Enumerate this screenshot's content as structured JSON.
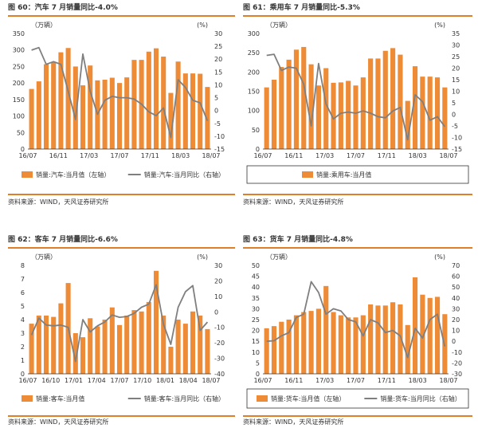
{
  "colors": {
    "bar": "#ee8b36",
    "line": "#7f7f7f",
    "rule": "#e07f2a",
    "axis": "#333333"
  },
  "chart_data": [
    {
      "type": "bar",
      "title": "图 60：汽车 7 月销量同比-4.0%",
      "left_unit": "（万辆）",
      "right_unit": "(%)",
      "source": "资料来源：WIND，天风证券研究所",
      "x_tick_labels": [
        "16/07",
        "16/11",
        "17/03",
        "17/07",
        "17/11",
        "18/03",
        "18/07"
      ],
      "ylim_left": [
        0,
        350
      ],
      "yticks_left": [
        0,
        50,
        100,
        150,
        200,
        250,
        300,
        350
      ],
      "ylim_right": [
        -15,
        30
      ],
      "yticks_right": [
        -15,
        -10,
        -5,
        0,
        5,
        10,
        15,
        20,
        25,
        30
      ],
      "legend": [
        "销量:汽车:当月值（左轴）",
        "销量:汽车:当月同比（右轴）"
      ],
      "series": [
        {
          "name": "销量:汽车:当月值（左轴）",
          "axis": "left",
          "values": [
            182,
            205,
            257,
            263,
            293,
            306,
            250,
            193,
            253,
            208,
            210,
            216,
            200,
            217,
            270,
            270,
            295,
            305,
            280,
            170,
            265,
            229,
            229,
            228,
            188
          ]
        },
        {
          "name": "销量:汽车:当月同比（右轴）",
          "axis": "right",
          "values": [
            23.5,
            24.5,
            18.0,
            19.0,
            18.0,
            7.5,
            -3.5,
            22.0,
            7.5,
            -1.5,
            4.0,
            5.5,
            5.0,
            5.0,
            4.5,
            2.5,
            -0.5,
            -2.0,
            1.0,
            -10.5,
            12.0,
            9.0,
            4.0,
            3.0,
            -4.0
          ]
        }
      ]
    },
    {
      "type": "bar",
      "title": "图 61：乘用车 7 月销量同比-5.3%",
      "left_unit": "（万辆）",
      "right_unit": "(%)",
      "source": "资料来源：WIND，天风证券研究所",
      "x_tick_labels": [
        "16/07",
        "16/11",
        "17/03",
        "17/07",
        "17/11",
        "18/03",
        "18/07"
      ],
      "ylim_left": [
        0,
        300
      ],
      "yticks_left": [
        0,
        50,
        100,
        150,
        200,
        250,
        300
      ],
      "ylim_right": [
        -15,
        35
      ],
      "yticks_right": [
        -15,
        -10,
        -5,
        0,
        5,
        10,
        15,
        20,
        25,
        30,
        35
      ],
      "legend": [
        "销量:乘用车:当月值"
      ],
      "series": [
        {
          "name": "销量:乘用车:当月值",
          "axis": "left",
          "values": [
            160,
            180,
            213,
            232,
            258,
            265,
            220,
            165,
            210,
            172,
            173,
            177,
            165,
            186,
            235,
            235,
            255,
            262,
            245,
            125,
            215,
            188,
            188,
            186,
            160
          ]
        },
        {
          "name": "",
          "axis": "right",
          "values": [
            25.5,
            26.0,
            19.0,
            20.5,
            20.0,
            13.0,
            -5.0,
            22.0,
            4.5,
            -2.0,
            0.5,
            1.0,
            0.5,
            1.5,
            0.5,
            -1.0,
            -1.5,
            1.5,
            3.0,
            -11.0,
            8.5,
            5.5,
            -2.5,
            -1.0,
            -5.3
          ]
        }
      ]
    },
    {
      "type": "bar",
      "title": "图 62：客车 7 月销量同比-6.6%",
      "left_unit": "（万辆）",
      "right_unit": "(%)",
      "source": "资料来源：WIND，天风证券研究所",
      "x_tick_labels": [
        "16/07",
        "16/10",
        "17/01",
        "17/04",
        "17/07",
        "17/10",
        "18/01",
        "18/04",
        "18/07"
      ],
      "ylim_left": [
        0,
        8
      ],
      "yticks_left": [
        0,
        1,
        2,
        3,
        4,
        5,
        6,
        7,
        8
      ],
      "ylim_right": [
        -40,
        30
      ],
      "yticks_right": [
        -40,
        -30,
        -20,
        -10,
        0,
        10,
        20,
        30
      ],
      "legend": [
        "销量:客车:当月值",
        "销量:客车:当月同比（右轴）"
      ],
      "series": [
        {
          "name": "销量:客车:当月值",
          "axis": "left",
          "values": [
            3.7,
            4.3,
            4.3,
            4.2,
            5.2,
            6.7,
            3.0,
            2.7,
            4.1,
            3.5,
            4.0,
            4.9,
            3.6,
            4.3,
            4.7,
            4.6,
            5.3,
            7.6,
            4.3,
            2.0,
            4.0,
            3.7,
            4.6,
            4.3,
            3.3
          ]
        },
        {
          "name": "销量:客车:当月同比（右轴）",
          "axis": "right",
          "values": [
            -15.0,
            -4.0,
            -8.5,
            -9.0,
            -8.5,
            -10.0,
            -32.0,
            -5.0,
            -13.0,
            -9.0,
            -6.5,
            -2.0,
            -3.5,
            -3.0,
            -1.0,
            3.0,
            5.0,
            17.5,
            -8.0,
            -21.0,
            3.0,
            13.0,
            17.0,
            -12.0,
            -6.6
          ]
        }
      ]
    },
    {
      "type": "bar",
      "title": "图 63：货车 7 月销量同比-4.8%",
      "left_unit": "（万辆）",
      "right_unit": "(%)",
      "source": "资料来源：WIND，天风证券研究所",
      "x_tick_labels": [
        "16/07",
        "16/11",
        "17/03",
        "17/07",
        "17/11",
        "18/03",
        "18/07"
      ],
      "ylim_left": [
        0,
        50
      ],
      "yticks_left": [
        0,
        5,
        10,
        15,
        20,
        25,
        30,
        35,
        40,
        45,
        50
      ],
      "ylim_right": [
        -30,
        70
      ],
      "yticks_right": [
        -30,
        -20,
        -10,
        0,
        10,
        20,
        30,
        40,
        50,
        60,
        70
      ],
      "legend": [
        "销量:货车:当月值（左轴）",
        "销量:货车:当月同比（右轴）"
      ],
      "series": [
        {
          "name": "销量:货车:当月值（左轴）",
          "axis": "left",
          "values": [
            21.0,
            22.0,
            24.0,
            25.0,
            27.0,
            28.5,
            29.0,
            30.0,
            40.5,
            28.5,
            27.0,
            26.0,
            26.0,
            27.0,
            32.0,
            31.5,
            31.5,
            33.0,
            32.0,
            22.5,
            44.5,
            36.5,
            35.0,
            35.5,
            27.5
          ]
        },
        {
          "name": "销量:货车:当月同比（右轴）",
          "axis": "right",
          "values": [
            0.0,
            0.5,
            5.0,
            8.0,
            22.0,
            25.0,
            55.0,
            45.0,
            25.0,
            30.0,
            28.0,
            20.0,
            18.0,
            5.0,
            20.0,
            17.0,
            8.0,
            10.0,
            5.0,
            -15.0,
            12.0,
            3.0,
            20.0,
            25.0,
            -4.8
          ]
        }
      ]
    }
  ]
}
